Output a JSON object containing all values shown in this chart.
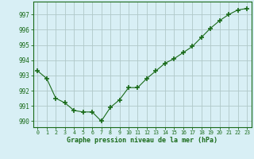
{
  "x": [
    0,
    1,
    2,
    3,
    4,
    5,
    6,
    7,
    8,
    9,
    10,
    11,
    12,
    13,
    14,
    15,
    16,
    17,
    18,
    19,
    20,
    21,
    22,
    23
  ],
  "y": [
    993.3,
    992.8,
    991.5,
    991.2,
    990.7,
    990.6,
    990.6,
    990.0,
    990.9,
    991.4,
    992.2,
    992.2,
    992.8,
    993.3,
    993.8,
    994.1,
    994.5,
    994.9,
    995.5,
    996.1,
    996.6,
    997.0,
    997.3,
    997.4
  ],
  "line_color": "#1a6b1a",
  "marker": "+",
  "marker_size": 4,
  "bg_color": "#d8eff5",
  "grid_color": "#b0c8c8",
  "xlabel": "Graphe pression niveau de la mer (hPa)",
  "xlabel_color": "#1a6b1a",
  "tick_color": "#1a6b1a",
  "ylim": [
    989.6,
    997.85
  ],
  "yticks": [
    990,
    991,
    992,
    993,
    994,
    995,
    996,
    997
  ],
  "xticks": [
    0,
    1,
    2,
    3,
    4,
    5,
    6,
    7,
    8,
    9,
    10,
    11,
    12,
    13,
    14,
    15,
    16,
    17,
    18,
    19,
    20,
    21,
    22,
    23
  ]
}
